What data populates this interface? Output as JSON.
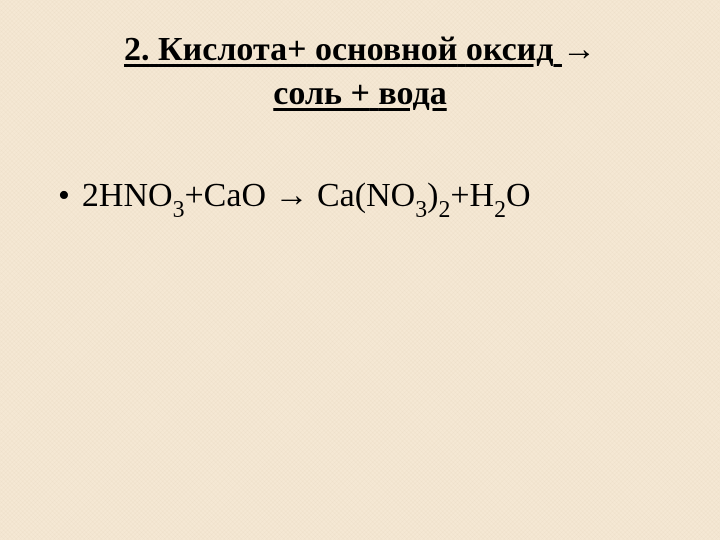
{
  "heading": {
    "number": "2.",
    "line1_word1": "Кислота+",
    "line1_word2": "основной",
    "line1_word3": "оксид",
    "line1_arrow": "→",
    "line2_word1": "соль",
    "line2_plus": "+",
    "line2_word2": "вода"
  },
  "equation": {
    "bullet": "•",
    "coeff1": "2",
    "reactant1_base": "HNO",
    "reactant1_sub": "3",
    "plus1": "+",
    "reactant2": "CaO",
    "arrow": "→",
    "product1_base1": "Ca(NO",
    "product1_sub1": "3",
    "product1_base2": ")",
    "product1_sub2": "2",
    "plus2": "+",
    "product2_base1": "H",
    "product2_sub1": "2",
    "product2_base2": "O"
  },
  "style": {
    "background_color": "#f5e8d4",
    "text_color": "#000000",
    "heading_fontsize": 34,
    "body_fontsize": 34,
    "font_family": "Times New Roman"
  }
}
